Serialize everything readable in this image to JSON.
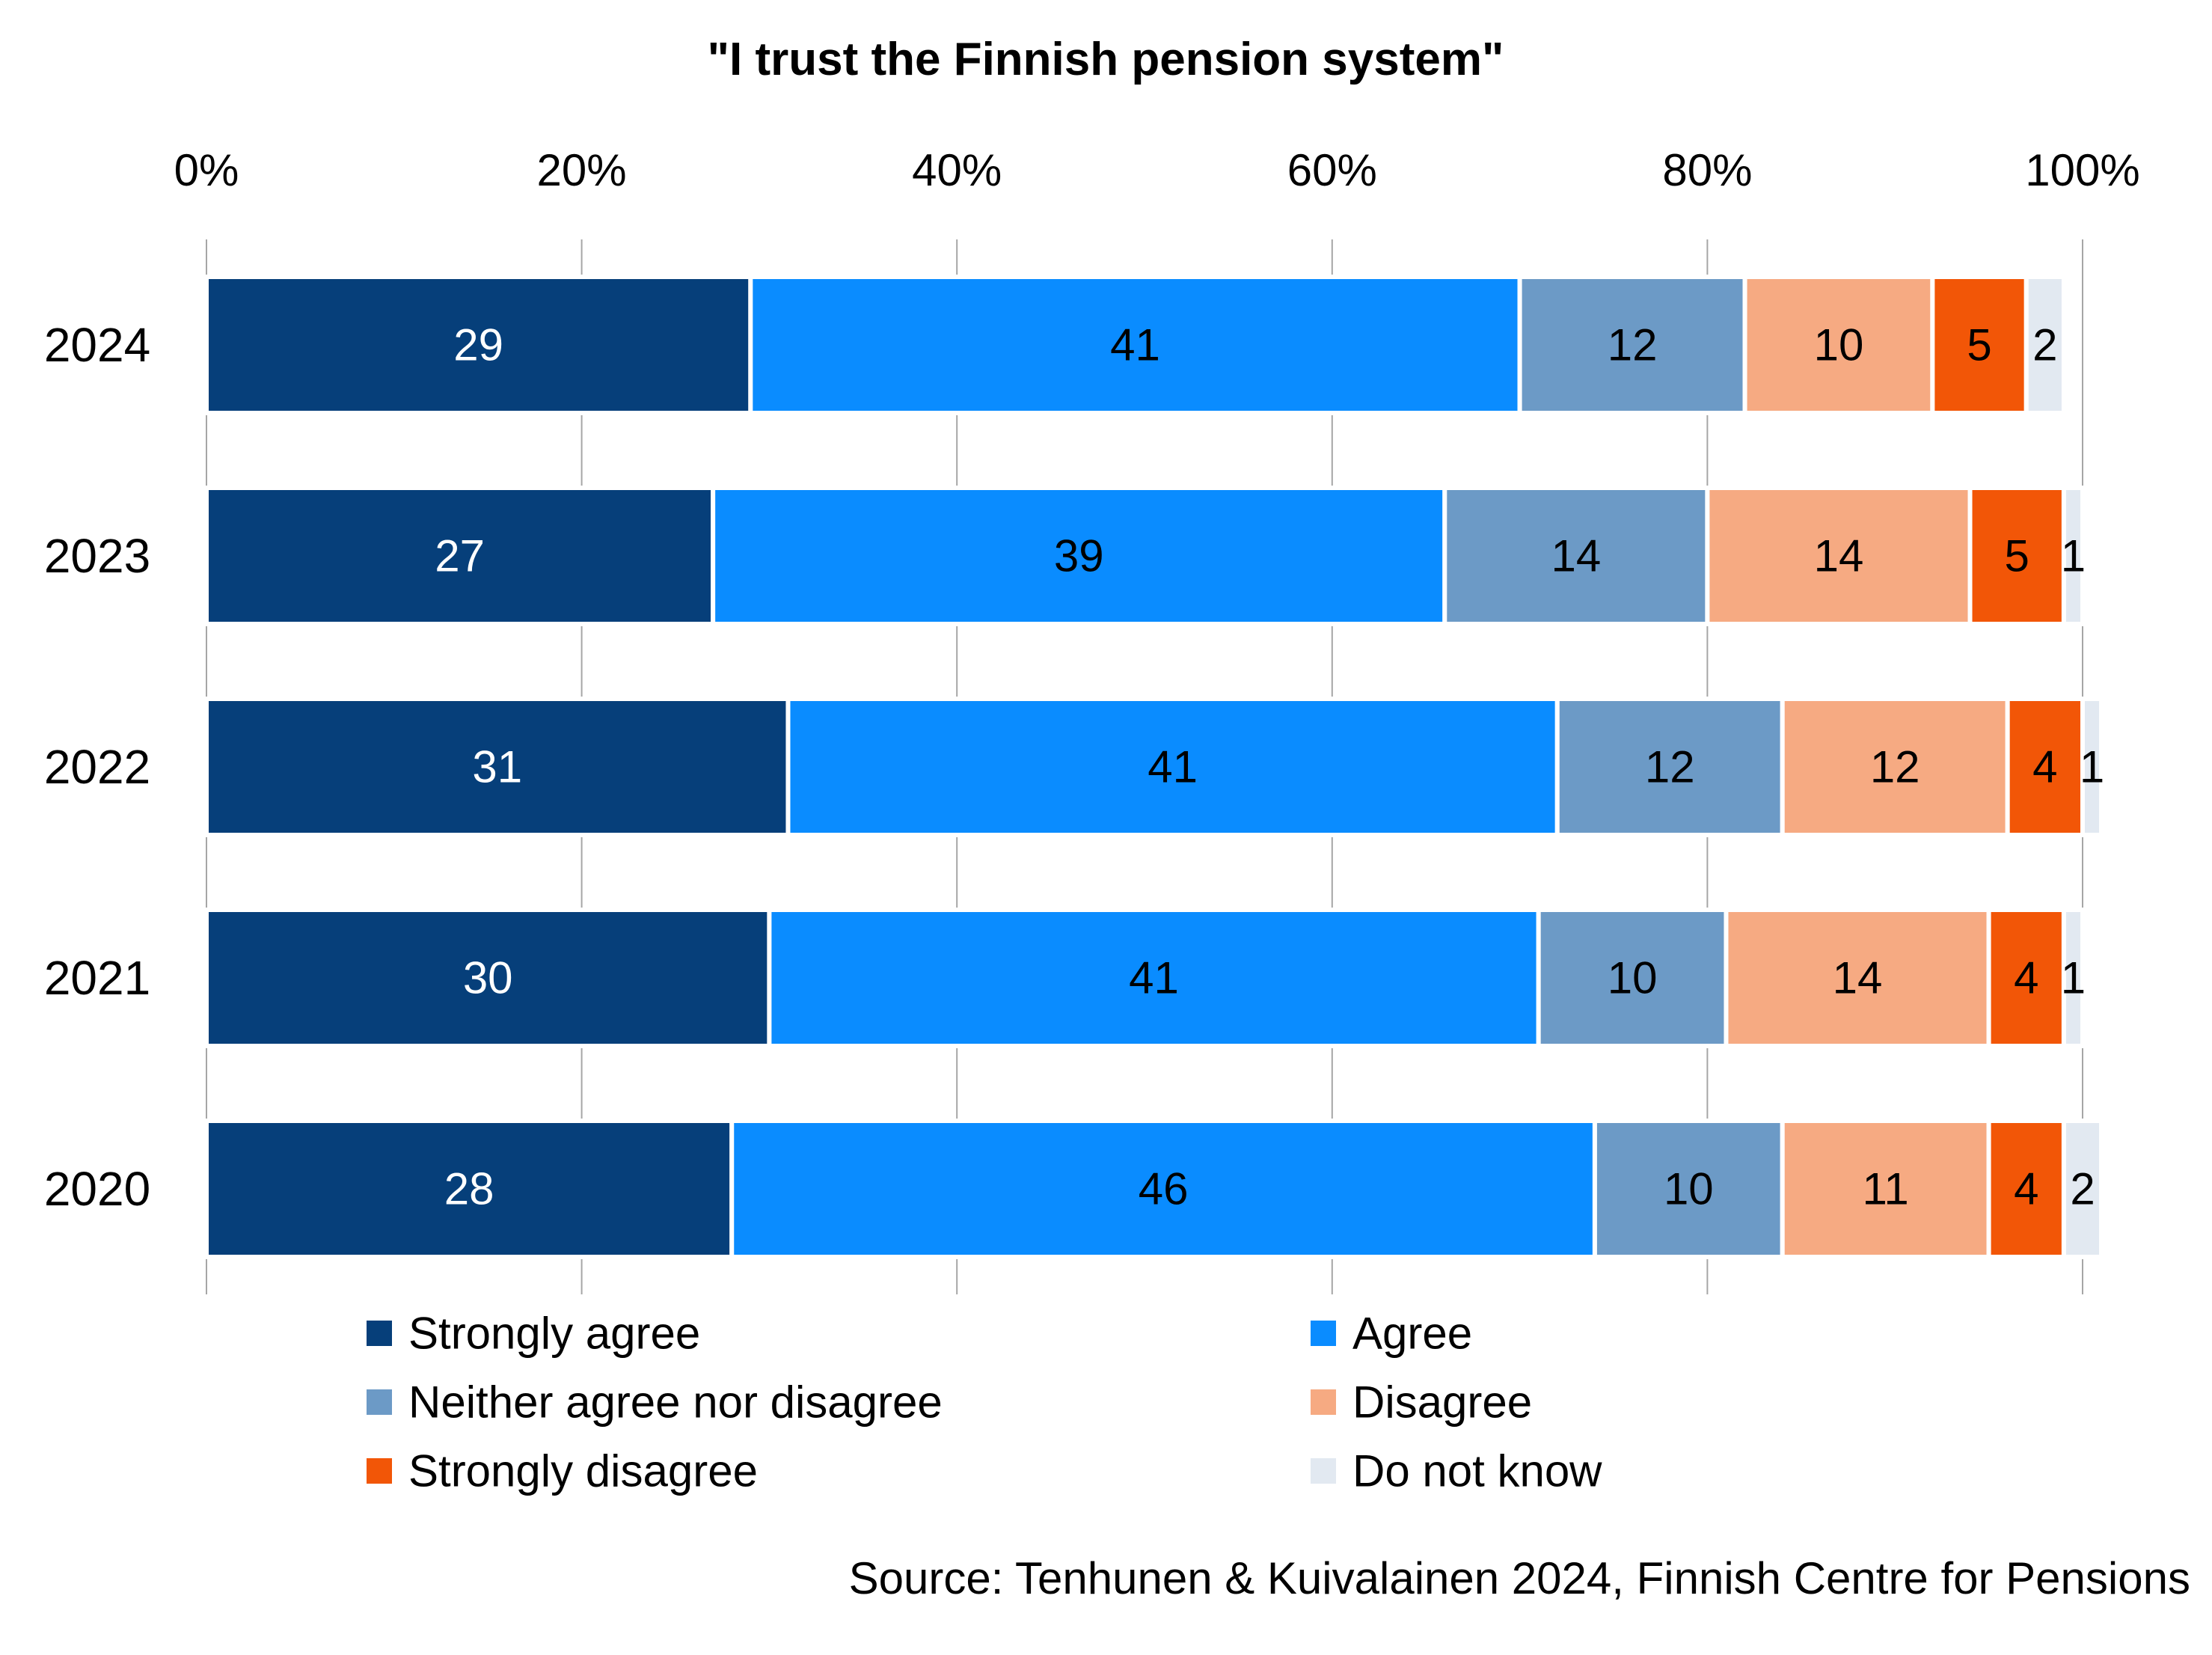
{
  "chart_data": {
    "type": "bar",
    "orientation": "horizontal",
    "stacked": true,
    "title": "\"I trust the Finnish pension system\"",
    "categories": [
      "2024",
      "2023",
      "2022",
      "2021",
      "2020"
    ],
    "series": [
      {
        "name": "Strongly agree",
        "color": "#063F7A",
        "label_color": "#FFFFFF",
        "values": [
          29,
          27,
          31,
          30,
          28
        ]
      },
      {
        "name": "Agree",
        "color": "#0A8CFF",
        "label_color": "#000000",
        "values": [
          41,
          39,
          41,
          41,
          46
        ]
      },
      {
        "name": "Neither agree nor disagree",
        "color": "#6C9AC6",
        "label_color": "#000000",
        "values": [
          12,
          14,
          12,
          10,
          10
        ]
      },
      {
        "name": "Disagree",
        "color": "#F6AA82",
        "label_color": "#000000",
        "values": [
          10,
          14,
          12,
          14,
          11
        ]
      },
      {
        "name": "Strongly disagree",
        "color": "#F25607",
        "label_color": "#000000",
        "values": [
          5,
          5,
          4,
          4,
          4
        ]
      },
      {
        "name": "Do not know",
        "color": "#E2E9F1",
        "label_color": "#000000",
        "values": [
          2,
          1,
          1,
          1,
          2
        ]
      }
    ],
    "xlim": [
      0,
      100
    ],
    "x_ticks": [
      0,
      20,
      40,
      60,
      80,
      100
    ],
    "x_tick_labels": [
      "0%",
      "20%",
      "40%",
      "60%",
      "80%",
      "100%"
    ],
    "x_axis_position": "top",
    "grid": true,
    "legend_position": "bottom",
    "legend_columns": 2,
    "source": "Source: Tenhunen & Kuivalainen 2024, Finnish Centre for Pensions"
  }
}
